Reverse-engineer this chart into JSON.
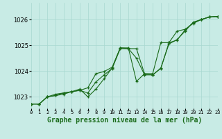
{
  "title": "Graphe pression niveau de la mer (hPa)",
  "bg_color": "#c8ebe5",
  "line_color": "#1a6b1a",
  "grid_color": "#a8d8d0",
  "xlim": [
    0,
    23
  ],
  "ylim": [
    1022.55,
    1026.65
  ],
  "yticks": [
    1023,
    1024,
    1025,
    1026
  ],
  "xtick_labels": [
    "0",
    "1",
    "2",
    "3",
    "4",
    "5",
    "6",
    "7",
    "8",
    "9",
    "10",
    "11",
    "12",
    "13",
    "14",
    "15",
    "16",
    "17",
    "18",
    "19",
    "20",
    "21",
    "22",
    "23"
  ],
  "series": [
    [
      1022.72,
      1022.72,
      1023.0,
      1023.05,
      1023.15,
      1023.2,
      1023.25,
      1023.35,
      1023.9,
      1023.98,
      1024.15,
      1024.9,
      1024.87,
      1024.87,
      1023.88,
      1023.85,
      1024.1,
      1025.1,
      1025.2,
      1025.6,
      1025.88,
      1026.0,
      1026.1,
      1026.12
    ],
    [
      1022.72,
      1022.72,
      1023.0,
      1023.1,
      1023.15,
      1023.2,
      1023.3,
      1023.0,
      1023.3,
      1023.7,
      1024.12,
      1024.9,
      1024.9,
      1023.6,
      1023.9,
      1023.9,
      1025.1,
      1025.1,
      1025.55,
      1025.62,
      1025.85,
      1026.0,
      1026.1,
      1026.12
    ],
    [
      1022.72,
      1022.72,
      1023.0,
      1023.05,
      1023.1,
      1023.2,
      1023.25,
      1023.15,
      1023.58,
      1023.85,
      1024.1,
      1024.87,
      1024.87,
      1024.5,
      1023.85,
      1023.85,
      1024.12,
      1025.05,
      1025.22,
      1025.55,
      1025.9,
      1026.0,
      1026.1,
      1026.12
    ]
  ],
  "ylabel_fontsize": 6.0,
  "xlabel_fontsize": 7.0,
  "xtick_fontsize": 5.0
}
